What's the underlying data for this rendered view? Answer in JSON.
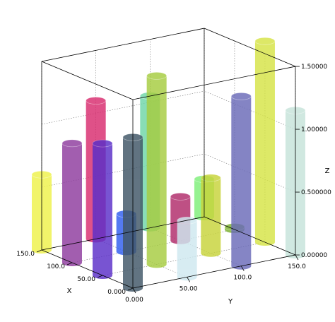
{
  "chart_data": {
    "type": "bar3d-cylinder",
    "xlabel": "X",
    "ylabel": "Y",
    "zlabel": "Z",
    "x_ticks": [
      "0.000",
      "50.00",
      "100.0",
      "150.0"
    ],
    "y_ticks": [
      "0.000",
      "50.00",
      "100.0",
      "150.0"
    ],
    "z_ticks": [
      "0.00000",
      "0.500000",
      "1.00000",
      "1.50000"
    ],
    "x_range": [
      0,
      150
    ],
    "y_range": [
      0,
      150
    ],
    "z_range": [
      0,
      1.5
    ],
    "grid": true,
    "bars": [
      {
        "x": 0,
        "y": 0,
        "z": 1.2,
        "color": "#3f5566"
      },
      {
        "x": 50,
        "y": 0,
        "z": 1.05,
        "color": "#5a2ec8"
      },
      {
        "x": 100,
        "y": 0,
        "z": 0.95,
        "color": "#8e3b9e"
      },
      {
        "x": 150,
        "y": 0,
        "z": 0.6,
        "color": "#eef24a"
      },
      {
        "x": 0,
        "y": 50,
        "z": 0.45,
        "color": "#cfe9f0"
      },
      {
        "x": 50,
        "y": 50,
        "z": 1.5,
        "color": "#a6cc3f"
      },
      {
        "x": 100,
        "y": 50,
        "z": 0.3,
        "color": "#2f5ef0"
      },
      {
        "x": 150,
        "y": 50,
        "z": 1.1,
        "color": "#d92c6f"
      },
      {
        "x": 0,
        "y": 100,
        "z": 1.35,
        "color": "#6a6ab8"
      },
      {
        "x": 50,
        "y": 100,
        "z": 0.6,
        "color": "#c8d43a"
      },
      {
        "x": 100,
        "y": 100,
        "z": 0.35,
        "color": "#b02a6a"
      },
      {
        "x": 150,
        "y": 100,
        "z": 1.05,
        "color": "#6fd6a8"
      },
      {
        "x": 0,
        "y": 150,
        "z": 1.15,
        "color": "#c6e3da"
      },
      {
        "x": 50,
        "y": 150,
        "z": 1.6,
        "color": "#d6e446"
      },
      {
        "x": 100,
        "y": 150,
        "z": 0.02,
        "color": "#7bb02e"
      },
      {
        "x": 150,
        "y": 150,
        "z": 0.3,
        "color": "#7ef07a"
      }
    ]
  }
}
